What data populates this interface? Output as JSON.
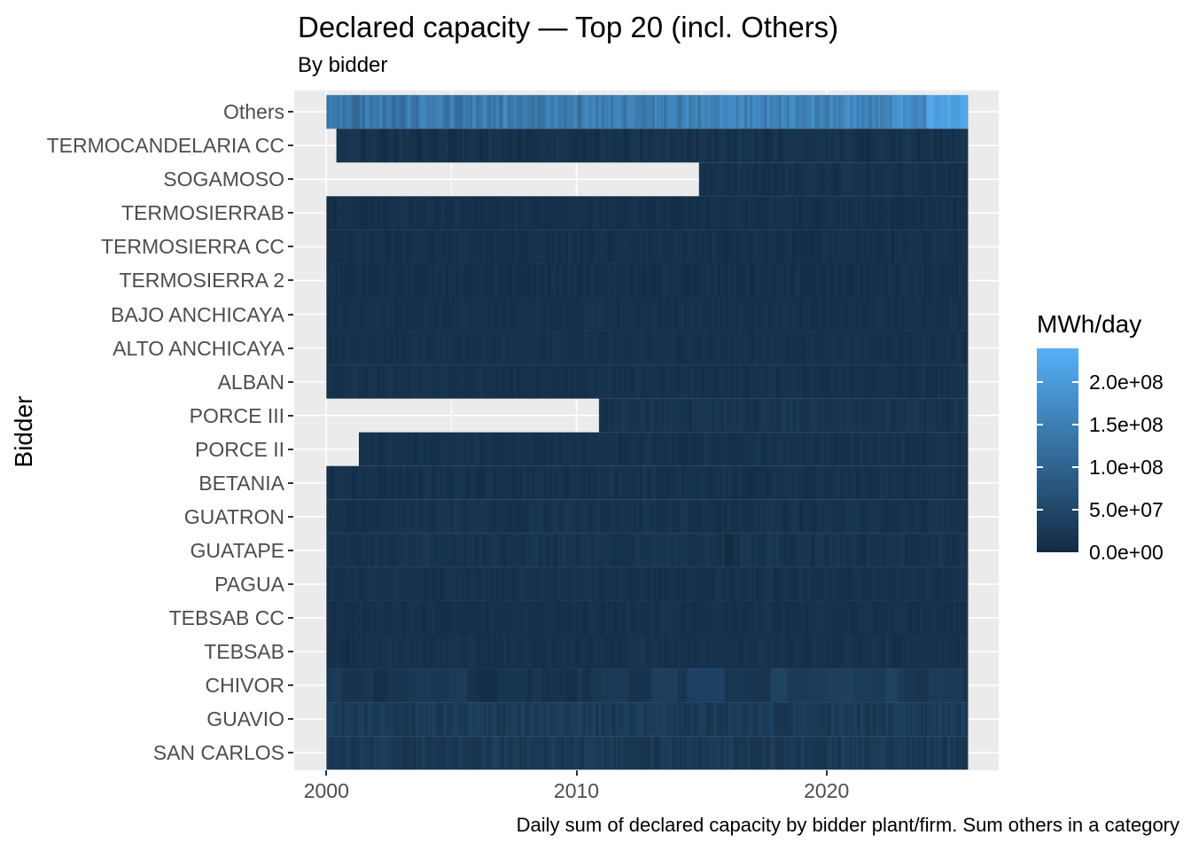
{
  "title": "Declared capacity — Top 20 (incl. Others)",
  "subtitle": "By bidder",
  "caption": "Daily sum of declared capacity by bidder plant/firm. Sum others in a category",
  "y_axis_title": "Bidder",
  "legend": {
    "title": "MWh/day",
    "ticks": [
      {
        "label": "2.0e+08",
        "value": 200000000
      },
      {
        "label": "1.5e+08",
        "value": 150000000
      },
      {
        "label": "1.0e+08",
        "value": 100000000
      },
      {
        "label": "5.0e+07",
        "value": 50000000
      },
      {
        "label": "0.0e+00",
        "value": 0
      }
    ]
  },
  "colors": {
    "background": "#ffffff",
    "panel_background": "#EBEBEB",
    "gridline": "#ffffff",
    "axis_text": "#4D4D4D",
    "title_text": "#000000",
    "tick_mark": "#333333",
    "scale_low": "#132B43",
    "scale_high": "#56B1F7"
  },
  "chart_data": {
    "type": "heatmap",
    "title": "Declared capacity — Top 20 (incl. Others)",
    "subtitle": "By bidder",
    "xlabel": "",
    "ylabel": "Bidder",
    "fill_label": "MWh/day",
    "x_domain": [
      2000.0,
      2025.65
    ],
    "value_domain": [
      0,
      240000000
    ],
    "x_major_ticks": [
      {
        "year": 2000,
        "label": "2000"
      },
      {
        "year": 2010,
        "label": "2010"
      },
      {
        "year": 2020,
        "label": "2020"
      }
    ],
    "x_minor_years": [
      2005,
      2015,
      2025
    ],
    "grid": true,
    "legend_position": "right",
    "rows": [
      {
        "bidder": "Others",
        "texture": "fine",
        "noise": 28000000,
        "segments": [
          {
            "start": 2000.0,
            "end": 2006.0,
            "value": 138000000
          },
          {
            "start": 2006.0,
            "end": 2012.0,
            "value": 143000000
          },
          {
            "start": 2012.0,
            "end": 2016.0,
            "value": 148000000
          },
          {
            "start": 2016.0,
            "end": 2020.0,
            "value": 153000000
          },
          {
            "start": 2020.0,
            "end": 2022.5,
            "value": 160000000
          },
          {
            "start": 2022.5,
            "end": 2024.0,
            "value": 178000000
          },
          {
            "start": 2024.0,
            "end": 2025.65,
            "value": 205000000
          }
        ]
      },
      {
        "bidder": "TERMOCANDELARIA CC",
        "texture": "fine",
        "noise": 10000000,
        "segments": [
          {
            "start": 2000.4,
            "end": 2025.65,
            "value": 12000000
          }
        ]
      },
      {
        "bidder": "SOGAMOSO",
        "texture": "fine",
        "noise": 7000000,
        "segments": [
          {
            "start": 2014.9,
            "end": 2025.65,
            "value": 11000000
          }
        ]
      },
      {
        "bidder": "TERMOSIERRAB",
        "texture": "fine",
        "noise": 6000000,
        "segments": [
          {
            "start": 2000.0,
            "end": 2025.65,
            "value": 10000000
          }
        ]
      },
      {
        "bidder": "TERMOSIERRA CC",
        "texture": "fine",
        "noise": 6000000,
        "segments": [
          {
            "start": 2000.0,
            "end": 2025.65,
            "value": 10000000
          }
        ]
      },
      {
        "bidder": "TERMOSIERRA 2",
        "texture": "fine",
        "noise": 6000000,
        "segments": [
          {
            "start": 2000.0,
            "end": 2025.65,
            "value": 9000000
          }
        ]
      },
      {
        "bidder": "BAJO ANCHICAYA",
        "texture": "fine",
        "noise": 5000000,
        "segments": [
          {
            "start": 2000.0,
            "end": 2025.65,
            "value": 11000000
          }
        ]
      },
      {
        "bidder": "ALTO ANCHICAYA",
        "texture": "fine",
        "noise": 5000000,
        "segments": [
          {
            "start": 2000.0,
            "end": 2025.65,
            "value": 11000000
          }
        ]
      },
      {
        "bidder": "ALBAN",
        "texture": "fine",
        "noise": 6000000,
        "segments": [
          {
            "start": 2000.0,
            "end": 2025.65,
            "value": 12000000
          }
        ]
      },
      {
        "bidder": "PORCE III",
        "texture": "fine",
        "noise": 8000000,
        "segments": [
          {
            "start": 2010.9,
            "end": 2025.65,
            "value": 16000000
          }
        ]
      },
      {
        "bidder": "PORCE II",
        "texture": "fine",
        "noise": 6000000,
        "segments": [
          {
            "start": 2001.3,
            "end": 2025.65,
            "value": 12000000
          }
        ]
      },
      {
        "bidder": "BETANIA",
        "texture": "fine",
        "noise": 7000000,
        "segments": [
          {
            "start": 2000.0,
            "end": 2025.65,
            "value": 12000000
          }
        ]
      },
      {
        "bidder": "GUATRON",
        "texture": "fine",
        "noise": 7000000,
        "segments": [
          {
            "start": 2000.0,
            "end": 2025.65,
            "value": 13000000
          }
        ]
      },
      {
        "bidder": "GUATAPE",
        "texture": "fine",
        "noise": 8000000,
        "segments": [
          {
            "start": 2000.0,
            "end": 2015.95,
            "value": 15000000
          },
          {
            "start": 2015.95,
            "end": 2016.3,
            "value": 3000000
          },
          {
            "start": 2016.3,
            "end": 2025.65,
            "value": 15000000
          }
        ]
      },
      {
        "bidder": "PAGUA",
        "texture": "fine",
        "noise": 6000000,
        "segments": [
          {
            "start": 2000.0,
            "end": 2025.65,
            "value": 12000000
          }
        ]
      },
      {
        "bidder": "TEBSAB CC",
        "texture": "fine",
        "noise": 6000000,
        "segments": [
          {
            "start": 2000.0,
            "end": 2025.65,
            "value": 11000000
          }
        ]
      },
      {
        "bidder": "TEBSAB",
        "texture": "fine",
        "noise": 6000000,
        "segments": [
          {
            "start": 2000.0,
            "end": 2025.65,
            "value": 12000000
          }
        ]
      },
      {
        "bidder": "CHIVOR",
        "texture": "block",
        "noise": 13000000,
        "segments": [
          {
            "start": 2000.0,
            "end": 2013.0,
            "value": 19000000
          },
          {
            "start": 2013.0,
            "end": 2024.6,
            "value": 29000000
          },
          {
            "start": 2024.6,
            "end": 2025.65,
            "value": 20000000
          }
        ]
      },
      {
        "bidder": "GUAVIO",
        "texture": "fine",
        "noise": 12000000,
        "segments": [
          {
            "start": 2000.0,
            "end": 2025.65,
            "value": 27000000
          }
        ]
      },
      {
        "bidder": "SAN CARLOS",
        "texture": "fine",
        "noise": 12000000,
        "segments": [
          {
            "start": 2000.0,
            "end": 2025.65,
            "value": 25000000
          }
        ]
      }
    ]
  }
}
